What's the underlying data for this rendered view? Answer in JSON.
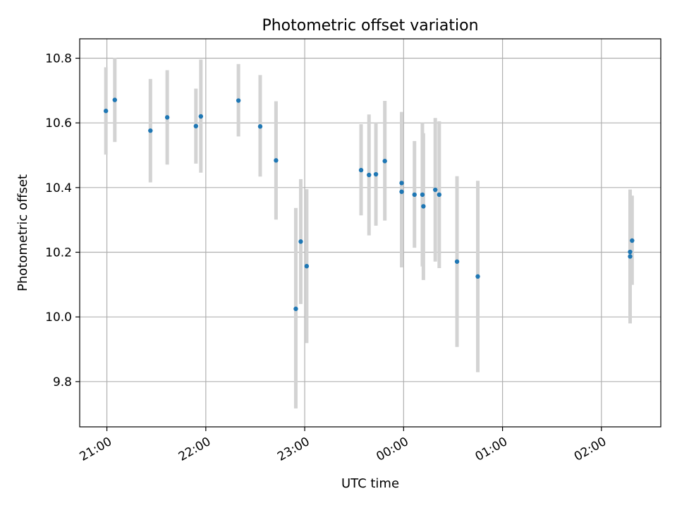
{
  "chart_data": {
    "type": "scatter",
    "title": "Photometric offset variation",
    "xlabel": "UTC time",
    "ylabel": "Photometric offset",
    "x_unit": "hours relative to 00:00 UTC",
    "xlim": [
      -3.275,
      2.6
    ],
    "ylim": [
      9.66,
      10.86
    ],
    "x_ticks": [
      {
        "value": -3,
        "label": "21:00"
      },
      {
        "value": -2,
        "label": "22:00"
      },
      {
        "value": -1,
        "label": "23:00"
      },
      {
        "value": 0,
        "label": "00:00"
      },
      {
        "value": 1,
        "label": "01:00"
      },
      {
        "value": 2,
        "label": "02:00"
      }
    ],
    "y_ticks": [
      {
        "value": 9.8,
        "label": "9.8"
      },
      {
        "value": 10.0,
        "label": "10.0"
      },
      {
        "value": 10.2,
        "label": "10.2"
      },
      {
        "value": 10.4,
        "label": "10.4"
      },
      {
        "value": 10.6,
        "label": "10.6"
      },
      {
        "value": 10.8,
        "label": "10.8"
      }
    ],
    "grid": true,
    "marker_color": "#1f77b4",
    "errorbar_color": "#d3d3d3",
    "points": [
      {
        "x": -3.01,
        "y": 10.637,
        "err_low": 10.502,
        "err_high": 10.772
      },
      {
        "x": -2.92,
        "y": 10.671,
        "err_low": 10.541,
        "err_high": 10.801
      },
      {
        "x": -2.56,
        "y": 10.576,
        "err_low": 10.416,
        "err_high": 10.736
      },
      {
        "x": -2.39,
        "y": 10.617,
        "err_low": 10.471,
        "err_high": 10.763
      },
      {
        "x": -2.1,
        "y": 10.59,
        "err_low": 10.474,
        "err_high": 10.706
      },
      {
        "x": -2.05,
        "y": 10.62,
        "err_low": 10.446,
        "err_high": 10.796
      },
      {
        "x": -1.67,
        "y": 10.669,
        "err_low": 10.558,
        "err_high": 10.782
      },
      {
        "x": -1.45,
        "y": 10.589,
        "err_low": 10.434,
        "err_high": 10.748
      },
      {
        "x": -1.29,
        "y": 10.484,
        "err_low": 10.301,
        "err_high": 10.667
      },
      {
        "x": -1.09,
        "y": 10.025,
        "err_low": 9.717,
        "err_high": 10.337
      },
      {
        "x": -1.04,
        "y": 10.233,
        "err_low": 10.04,
        "err_high": 10.426
      },
      {
        "x": -0.98,
        "y": 10.157,
        "err_low": 9.919,
        "err_high": 10.395
      },
      {
        "x": -0.43,
        "y": 10.454,
        "err_low": 10.314,
        "err_high": 10.596
      },
      {
        "x": -0.35,
        "y": 10.439,
        "err_low": 10.252,
        "err_high": 10.626
      },
      {
        "x": -0.28,
        "y": 10.441,
        "err_low": 10.282,
        "err_high": 10.602
      },
      {
        "x": -0.19,
        "y": 10.482,
        "err_low": 10.298,
        "err_high": 10.668
      },
      {
        "x": -0.02,
        "y": 10.414,
        "err_low": 10.196,
        "err_high": 10.634
      },
      {
        "x": -0.02,
        "y": 10.387,
        "err_low": 10.153,
        "err_high": 10.621
      },
      {
        "x": 0.11,
        "y": 10.378,
        "err_low": 10.214,
        "err_high": 10.544
      },
      {
        "x": 0.19,
        "y": 10.378,
        "err_low": 10.156,
        "err_high": 10.6
      },
      {
        "x": 0.2,
        "y": 10.342,
        "err_low": 10.114,
        "err_high": 10.568
      },
      {
        "x": 0.32,
        "y": 10.393,
        "err_low": 10.171,
        "err_high": 10.615
      },
      {
        "x": 0.36,
        "y": 10.378,
        "err_low": 10.151,
        "err_high": 10.605
      },
      {
        "x": 0.54,
        "y": 10.171,
        "err_low": 9.907,
        "err_high": 10.435
      },
      {
        "x": 0.75,
        "y": 10.125,
        "err_low": 9.829,
        "err_high": 10.421
      },
      {
        "x": 2.29,
        "y": 10.201,
        "err_low": 10.008,
        "err_high": 10.394
      },
      {
        "x": 2.29,
        "y": 10.187,
        "err_low": 9.98,
        "err_high": 10.384
      },
      {
        "x": 2.31,
        "y": 10.236,
        "err_low": 10.099,
        "err_high": 10.375
      }
    ]
  }
}
